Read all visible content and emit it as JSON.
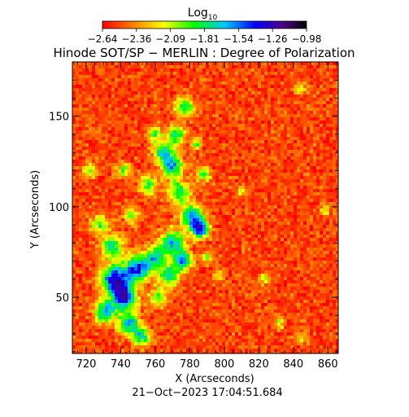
{
  "chart_data": {
    "type": "heatmap",
    "title": "Hinode SOT/SP − MERLIN : Degree of Polarization",
    "xlabel": "X (Arcseconds)",
    "ylabel": "Y (Arcseconds)",
    "footer": "21−Oct−2023 17:04:51.684",
    "colorbar": {
      "label_base": "Log",
      "label_sub": "10",
      "ticks": [
        "−2.64",
        "−2.36",
        "−2.09",
        "−1.81",
        "−1.54",
        "−1.26",
        "−0.98"
      ],
      "range": [
        -2.64,
        -0.98
      ]
    },
    "xlim": [
      712,
      866
    ],
    "ylim": [
      19,
      180
    ],
    "xticks": [
      720,
      740,
      760,
      780,
      800,
      820,
      840,
      860
    ],
    "yticks": [
      50,
      100,
      150
    ],
    "colors": {
      "scale": [
        "#ff0000",
        "#ff7800",
        "#ffff00",
        "#00ff00",
        "#00c8ff",
        "#0000ff",
        "#50008c",
        "#000000"
      ]
    }
  }
}
